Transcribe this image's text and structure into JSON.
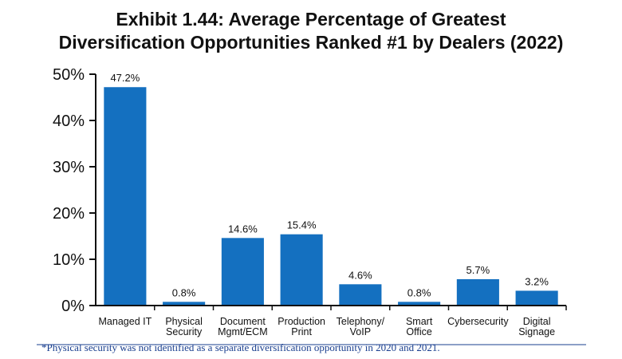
{
  "chart_data": {
    "type": "bar",
    "title_lines": [
      "Exhibit 1.44: Average Percentage of Greatest",
      "Diversification Opportunities Ranked #1 by Dealers (2022)"
    ],
    "categories": [
      [
        "Managed IT"
      ],
      [
        "Physical",
        "Security"
      ],
      [
        "Document",
        "Mgmt/ECM"
      ],
      [
        "Production",
        "Print"
      ],
      [
        "Telephony/",
        "VoIP"
      ],
      [
        "Smart",
        "Office"
      ],
      [
        "Cybersecurity"
      ],
      [
        "Digital",
        "Signage"
      ]
    ],
    "values": [
      47.2,
      0.8,
      14.6,
      15.4,
      4.6,
      0.8,
      5.7,
      3.2
    ],
    "value_labels": [
      "47.2%",
      "0.8%",
      "14.6%",
      "15.4%",
      "4.6%",
      "0.8%",
      "5.7%",
      "3.2%"
    ],
    "ylim": [
      0,
      50
    ],
    "yticks": [
      0,
      10,
      20,
      30,
      40,
      50
    ],
    "ytick_labels": [
      "0%",
      "10%",
      "20%",
      "30%",
      "40%",
      "50%"
    ],
    "bar_color": "#1470c0",
    "axis_color": "#111111",
    "grid": false,
    "legend": false
  },
  "footnote": "*Physical security was not identified as a separate diversification opportunity in 2020 and 2021."
}
